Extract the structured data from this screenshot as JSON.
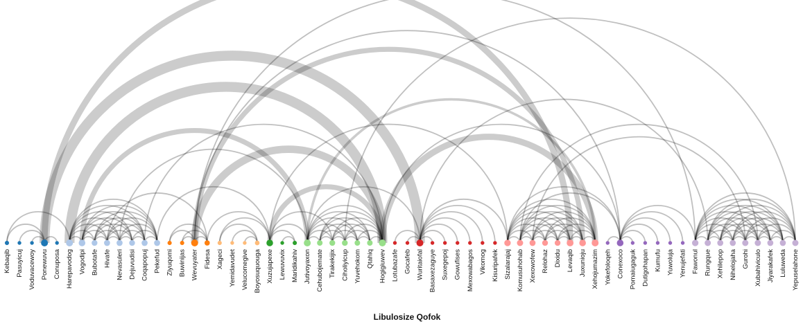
{
  "title": "Libulosize Qofok",
  "nodes": [
    {
      "name": "Kebaqib",
      "color": "#1f77b4"
    },
    {
      "name": "Pasuyicuj",
      "color": "#1f77b4"
    },
    {
      "name": "Voduvacewoy",
      "color": "#1f77b4"
    },
    {
      "name": "Ponewuvu",
      "color": "#1f77b4"
    },
    {
      "name": "Conuposa",
      "color": "#1f77b4"
    },
    {
      "name": "Harepavodog",
      "color": "#aec7e8"
    },
    {
      "name": "Vogodipi",
      "color": "#aec7e8"
    },
    {
      "name": "Bubotafe",
      "color": "#aec7e8"
    },
    {
      "name": "Hivafe",
      "color": "#aec7e8"
    },
    {
      "name": "Nevasuleri",
      "color": "#aec7e8"
    },
    {
      "name": "Dejuvudisi",
      "color": "#aec7e8"
    },
    {
      "name": "Coqapopuj",
      "color": "#aec7e8"
    },
    {
      "name": "Pekefud",
      "color": "#aec7e8"
    },
    {
      "name": "Ziyuqomi",
      "color": "#ff7f0e"
    },
    {
      "name": "Buwinijas",
      "color": "#ff7f0e"
    },
    {
      "name": "Wevuyater",
      "color": "#ff7f0e"
    },
    {
      "name": "Fidesa",
      "color": "#ff7f0e"
    },
    {
      "name": "Xageci",
      "color": "#ffbb78"
    },
    {
      "name": "Yemidavudet",
      "color": "#ffbb78"
    },
    {
      "name": "Velucomegive",
      "color": "#ffbb78"
    },
    {
      "name": "Boyosuquouga",
      "color": "#ffbb78"
    },
    {
      "name": "Xuzujapexe",
      "color": "#2ca02c"
    },
    {
      "name": "Lewuvuvix",
      "color": "#2ca02c"
    },
    {
      "name": "Maridikahiv",
      "color": "#2ca02c"
    },
    {
      "name": "Jutivoyaxon",
      "color": "#98df8a"
    },
    {
      "name": "Cehubojemate",
      "color": "#98df8a"
    },
    {
      "name": "Tirakekijix",
      "color": "#98df8a"
    },
    {
      "name": "Ciholiyicup",
      "color": "#98df8a"
    },
    {
      "name": "Yuvehokom",
      "color": "#98df8a"
    },
    {
      "name": "Qtahiq",
      "color": "#98df8a"
    },
    {
      "name": "Hogigiuwev",
      "color": "#98df8a"
    },
    {
      "name": "Lotubazafe",
      "color": "#d62728"
    },
    {
      "name": "Gocafeb",
      "color": "#d62728"
    },
    {
      "name": "Wuritaiofal",
      "color": "#d62728"
    },
    {
      "name": "Basaxezaguye",
      "color": "#d62728"
    },
    {
      "name": "Suxegepoj",
      "color": "#d62728"
    },
    {
      "name": "Gowufises",
      "color": "#d62728"
    },
    {
      "name": "Mexowabagos",
      "color": "#d62728"
    },
    {
      "name": "Vikomog",
      "color": "#d62728"
    },
    {
      "name": "Kisuripafek",
      "color": "#d62728"
    },
    {
      "name": "Sizalarajaj",
      "color": "#ff9896"
    },
    {
      "name": "Komusuhohab",
      "color": "#ff9896"
    },
    {
      "name": "Xexowofew",
      "color": "#ff9896"
    },
    {
      "name": "Relohaz",
      "color": "#ff9896"
    },
    {
      "name": "Dixidu",
      "color": "#ff9896"
    },
    {
      "name": "Levaqib",
      "color": "#ff9896"
    },
    {
      "name": "Juxunioju",
      "color": "#ff9896"
    },
    {
      "name": "Xehojumazim",
      "color": "#ff9896"
    },
    {
      "name": "Yokefoloqeh",
      "color": "#9467bd"
    },
    {
      "name": "Conexoco",
      "color": "#9467bd"
    },
    {
      "name": "Pomaiugaguk",
      "color": "#9467bd"
    },
    {
      "name": "Dutigohapan",
      "color": "#9467bd"
    },
    {
      "name": "Kumufu",
      "color": "#9467bd"
    },
    {
      "name": "Yuwoluja",
      "color": "#9467bd"
    },
    {
      "name": "Yenujefati",
      "color": "#9467bd"
    },
    {
      "name": "Fawonul",
      "color": "#c5b0d5"
    },
    {
      "name": "Rungque",
      "color": "#c5b0d5"
    },
    {
      "name": "Xehilepop",
      "color": "#c5b0d5"
    },
    {
      "name": "Nihelojaha",
      "color": "#c5b0d5"
    },
    {
      "name": "Gurohi",
      "color": "#c5b0d5"
    },
    {
      "name": "Xubahiviculo",
      "color": "#c5b0d5"
    },
    {
      "name": "Jiyarakafek",
      "color": "#c5b0d5"
    },
    {
      "name": "Luluweda",
      "color": "#c5b0d5"
    },
    {
      "name": "Yepuselahone",
      "color": "#c5b0d5"
    }
  ],
  "groups": [
    [
      0,
      4
    ],
    [
      5,
      12
    ],
    [
      13,
      16
    ],
    [
      17,
      20
    ],
    [
      21,
      23
    ],
    [
      24,
      30
    ],
    [
      31,
      39
    ],
    [
      40,
      47
    ],
    [
      48,
      54
    ],
    [
      55,
      63
    ]
  ],
  "links": [
    [
      0,
      3,
      1
    ],
    [
      1,
      3,
      1
    ],
    [
      2,
      3,
      1
    ],
    [
      3,
      4,
      1
    ],
    [
      0,
      5,
      1
    ],
    [
      13,
      15,
      1
    ],
    [
      14,
      15,
      1
    ],
    [
      15,
      16,
      1
    ],
    [
      13,
      16,
      1
    ],
    [
      14,
      16,
      1
    ],
    [
      17,
      20,
      1
    ],
    [
      18,
      20,
      1
    ],
    [
      19,
      20,
      1
    ],
    [
      17,
      21,
      1
    ],
    [
      16,
      21,
      1
    ],
    [
      21,
      23,
      1
    ],
    [
      22,
      23,
      1
    ],
    [
      21,
      24,
      1
    ],
    [
      31,
      33,
      1
    ],
    [
      32,
      33,
      1
    ],
    [
      33,
      34,
      1
    ],
    [
      33,
      35,
      1
    ],
    [
      33,
      36,
      1
    ],
    [
      33,
      37,
      1
    ],
    [
      33,
      38,
      1
    ],
    [
      33,
      39,
      1
    ],
    [
      24,
      33,
      1
    ],
    [
      33,
      40,
      1
    ],
    [
      48,
      49,
      1
    ],
    [
      49,
      50,
      1
    ],
    [
      49,
      51,
      1
    ],
    [
      49,
      52,
      1
    ],
    [
      49,
      53,
      1
    ],
    [
      49,
      54,
      1
    ],
    [
      40,
      49,
      1
    ],
    [
      41,
      49,
      1
    ],
    [
      49,
      55,
      1
    ],
    [
      5,
      9,
      1
    ],
    [
      8,
      16,
      1
    ],
    [
      12,
      21,
      1
    ],
    [
      9,
      24,
      1
    ],
    [
      3,
      33,
      8
    ],
    [
      3,
      45,
      5
    ],
    [
      15,
      46,
      4
    ],
    [
      5,
      30,
      8
    ],
    [
      6,
      24,
      4
    ],
    [
      15,
      30,
      6
    ],
    [
      15,
      55,
      1
    ],
    [
      15,
      49,
      1
    ],
    [
      21,
      30,
      4
    ],
    [
      30,
      49,
      1
    ],
    [
      30,
      47,
      5
    ],
    [
      21,
      40,
      1
    ],
    [
      24,
      47,
      2
    ],
    [
      41,
      60,
      1
    ],
    [
      42,
      59,
      1
    ],
    [
      33,
      56,
      1
    ],
    [
      27,
      63,
      1
    ],
    [
      11,
      30,
      1
    ],
    [
      21,
      26,
      1
    ],
    [
      5,
      6,
      1
    ],
    [
      5,
      7,
      1
    ],
    [
      5,
      8,
      1
    ],
    [
      5,
      10,
      1
    ],
    [
      5,
      11,
      1
    ],
    [
      5,
      12,
      1
    ],
    [
      6,
      7,
      1
    ],
    [
      6,
      8,
      1
    ],
    [
      6,
      9,
      1
    ],
    [
      6,
      10,
      1
    ],
    [
      6,
      11,
      1
    ],
    [
      6,
      12,
      1
    ],
    [
      7,
      8,
      1
    ],
    [
      7,
      9,
      1
    ],
    [
      7,
      10,
      1
    ],
    [
      7,
      11,
      1
    ],
    [
      7,
      12,
      1
    ],
    [
      8,
      9,
      1
    ],
    [
      8,
      10,
      1
    ],
    [
      8,
      11,
      1
    ],
    [
      8,
      12,
      1
    ],
    [
      9,
      10,
      1
    ],
    [
      9,
      11,
      1
    ],
    [
      9,
      12,
      1
    ],
    [
      10,
      11,
      1
    ],
    [
      10,
      12,
      1
    ],
    [
      11,
      12,
      1
    ],
    [
      24,
      25,
      1
    ],
    [
      24,
      26,
      1
    ],
    [
      24,
      27,
      1
    ],
    [
      24,
      28,
      1
    ],
    [
      24,
      29,
      1
    ],
    [
      24,
      30,
      1
    ],
    [
      25,
      26,
      1
    ],
    [
      25,
      27,
      1
    ],
    [
      25,
      28,
      1
    ],
    [
      25,
      29,
      1
    ],
    [
      25,
      30,
      1
    ],
    [
      26,
      27,
      1
    ],
    [
      26,
      28,
      1
    ],
    [
      26,
      29,
      1
    ],
    [
      26,
      30,
      1
    ],
    [
      27,
      28,
      1
    ],
    [
      27,
      29,
      1
    ],
    [
      27,
      30,
      1
    ],
    [
      28,
      29,
      1
    ],
    [
      28,
      30,
      1
    ],
    [
      29,
      30,
      1
    ],
    [
      40,
      41,
      1
    ],
    [
      40,
      42,
      1
    ],
    [
      40,
      43,
      1
    ],
    [
      40,
      44,
      1
    ],
    [
      40,
      45,
      1
    ],
    [
      40,
      46,
      1
    ],
    [
      40,
      47,
      1
    ],
    [
      41,
      42,
      1
    ],
    [
      41,
      43,
      1
    ],
    [
      41,
      44,
      1
    ],
    [
      41,
      45,
      1
    ],
    [
      41,
      46,
      1
    ],
    [
      41,
      47,
      1
    ],
    [
      42,
      43,
      1
    ],
    [
      42,
      44,
      1
    ],
    [
      42,
      45,
      1
    ],
    [
      42,
      46,
      1
    ],
    [
      42,
      47,
      1
    ],
    [
      43,
      44,
      1
    ],
    [
      43,
      45,
      1
    ],
    [
      43,
      46,
      1
    ],
    [
      43,
      47,
      1
    ],
    [
      44,
      45,
      1
    ],
    [
      44,
      46,
      1
    ],
    [
      44,
      47,
      1
    ],
    [
      45,
      46,
      1
    ],
    [
      45,
      47,
      1
    ],
    [
      46,
      47,
      1
    ],
    [
      55,
      56,
      1
    ],
    [
      55,
      57,
      1
    ],
    [
      55,
      58,
      1
    ],
    [
      55,
      59,
      1
    ],
    [
      55,
      60,
      1
    ],
    [
      55,
      61,
      1
    ],
    [
      55,
      62,
      1
    ],
    [
      55,
      63,
      1
    ],
    [
      56,
      57,
      1
    ],
    [
      56,
      58,
      1
    ],
    [
      56,
      59,
      1
    ],
    [
      56,
      60,
      1
    ],
    [
      56,
      61,
      1
    ],
    [
      56,
      62,
      1
    ],
    [
      56,
      63,
      1
    ],
    [
      57,
      58,
      1
    ],
    [
      57,
      59,
      1
    ],
    [
      57,
      60,
      1
    ],
    [
      57,
      61,
      1
    ],
    [
      57,
      62,
      1
    ],
    [
      57,
      63,
      1
    ],
    [
      58,
      59,
      1
    ],
    [
      58,
      60,
      1
    ],
    [
      58,
      61,
      1
    ],
    [
      58,
      62,
      1
    ],
    [
      58,
      63,
      1
    ],
    [
      59,
      60,
      1
    ],
    [
      59,
      61,
      1
    ],
    [
      59,
      62,
      1
    ],
    [
      59,
      63,
      1
    ],
    [
      60,
      61,
      1
    ],
    [
      60,
      62,
      1
    ],
    [
      60,
      63,
      1
    ],
    [
      61,
      62,
      1
    ],
    [
      61,
      63,
      1
    ],
    [
      62,
      63,
      1
    ]
  ]
}
